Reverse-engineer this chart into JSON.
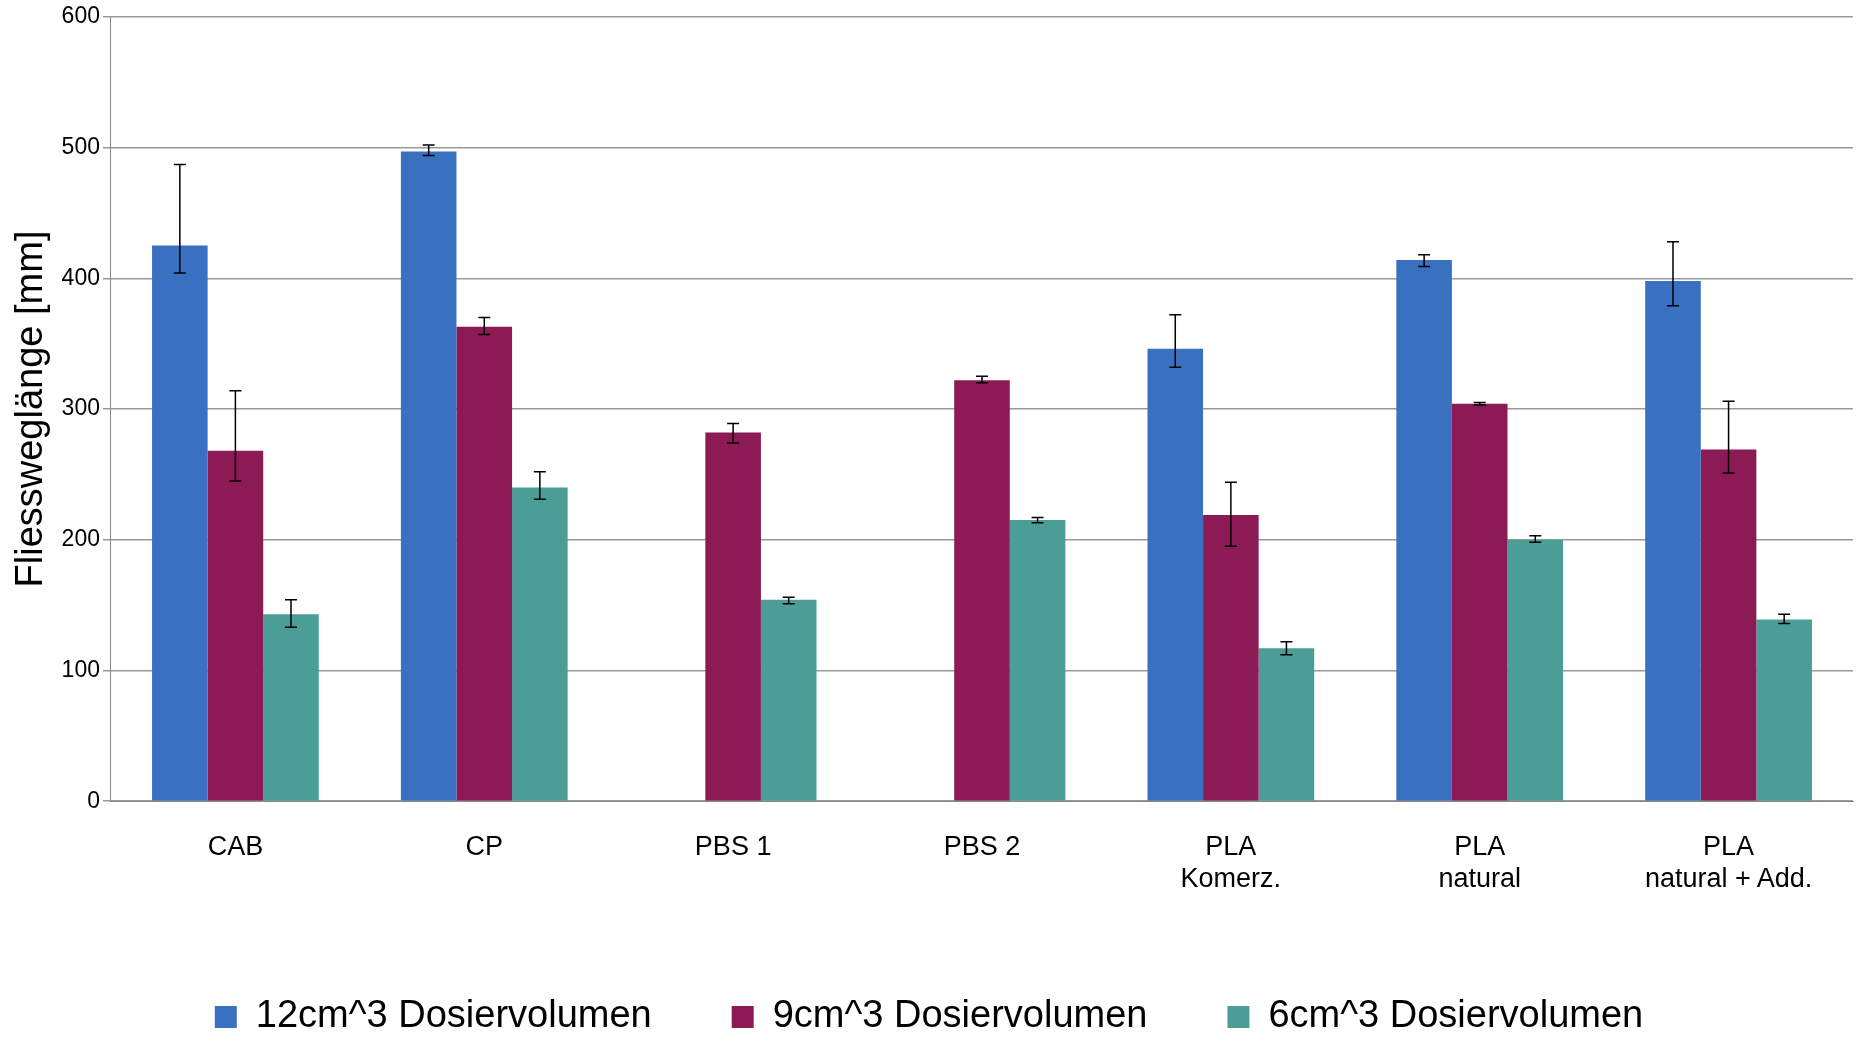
{
  "chart_data": {
    "type": "bar",
    "ylabel": "Fliessweglänge [mm]",
    "categories": [
      "CAB",
      "CP",
      "PBS 1",
      "PBS 2",
      "PLA\nKomerz.",
      "PLA\nnatural",
      "PLA\nnatural + Add."
    ],
    "series": [
      {
        "name": "12cm^3 Dosiervolumen",
        "color": "#3a70c0",
        "values": [
          425,
          497,
          null,
          null,
          346,
          414,
          398
        ],
        "errors": [
          [
            404,
            487
          ],
          [
            494,
            502
          ],
          null,
          null,
          [
            332,
            372
          ],
          [
            409,
            418
          ],
          [
            379,
            428
          ]
        ]
      },
      {
        "name": "9cm^3 Dosiervolumen",
        "color": "#8b1a55",
        "values": [
          268,
          363,
          282,
          322,
          219,
          304,
          269
        ],
        "errors": [
          [
            245,
            314
          ],
          [
            357,
            370
          ],
          [
            274,
            289
          ],
          [
            320,
            325
          ],
          [
            195,
            244
          ],
          [
            303,
            305
          ],
          [
            251,
            306
          ]
        ]
      },
      {
        "name": "6cm^3 Dosiervolumen",
        "color": "#4a9e96",
        "values": [
          143,
          240,
          154,
          215,
          117,
          200,
          139
        ],
        "errors": [
          [
            133,
            154
          ],
          [
            231,
            252
          ],
          [
            151,
            156
          ],
          [
            213,
            217
          ],
          [
            112,
            122
          ],
          [
            198,
            203
          ],
          [
            136,
            143
          ]
        ]
      }
    ],
    "ylim": [
      0,
      600
    ],
    "yticks": [
      0,
      100,
      200,
      300,
      400,
      500,
      600
    ],
    "grid": "y",
    "legend": "bottom"
  }
}
